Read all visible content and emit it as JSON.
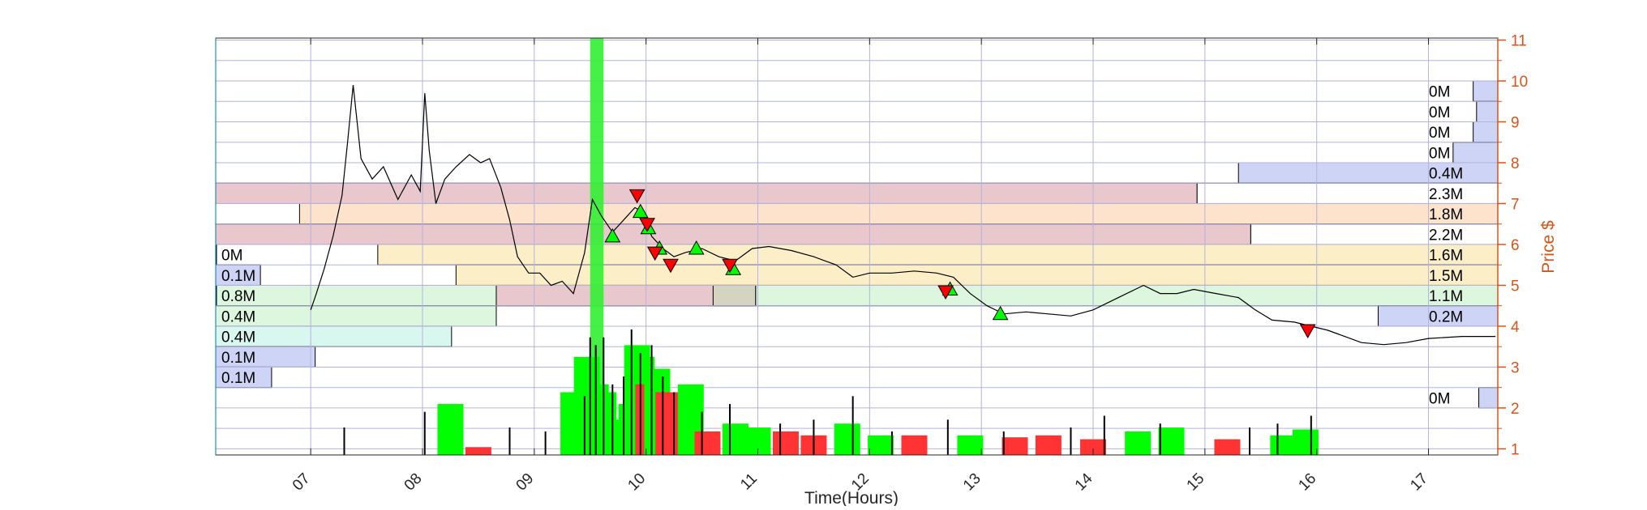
{
  "chart_data": {
    "type": "line",
    "title": "",
    "xlabel": "Time(Hours)",
    "ylabel": "Price $",
    "xlim": [
      6.15,
      17.62
    ],
    "ylim": [
      0.85,
      11.05
    ],
    "x_ticks": [
      "07",
      "08",
      "09",
      "10",
      "11",
      "12",
      "13",
      "14",
      "15",
      "16",
      "17"
    ],
    "y_ticks": [
      1,
      2,
      3,
      4,
      5,
      6,
      7,
      8,
      9,
      10,
      11
    ],
    "grid": true,
    "colors": {
      "axis_right": "#d95319",
      "axis_left": "#0072bd",
      "grid": "#b3b3dd",
      "price": "#000000",
      "buy_marker": "#00ff00",
      "sell_marker": "#ff0000",
      "vol_up": "#00ff00",
      "vol_down": "#ff3333",
      "vp_blue": "#cdd4f5",
      "vp_red": "#e8c8cc",
      "vp_orange": "#fde2cc",
      "vp_yellow": "#fcefc8",
      "vp_green": "#ddf7df",
      "vp_cyan": "#d8f7ef"
    },
    "price_series": [
      [
        7.0,
        4.4
      ],
      [
        7.05,
        4.8
      ],
      [
        7.12,
        5.4
      ],
      [
        7.2,
        6.2
      ],
      [
        7.28,
        7.2
      ],
      [
        7.33,
        8.5
      ],
      [
        7.38,
        9.9
      ],
      [
        7.45,
        8.1
      ],
      [
        7.55,
        7.6
      ],
      [
        7.65,
        7.9
      ],
      [
        7.78,
        7.1
      ],
      [
        7.9,
        7.7
      ],
      [
        7.98,
        7.3
      ],
      [
        8.02,
        9.7
      ],
      [
        8.06,
        8.3
      ],
      [
        8.12,
        7.0
      ],
      [
        8.2,
        7.6
      ],
      [
        8.3,
        7.9
      ],
      [
        8.42,
        8.2
      ],
      [
        8.52,
        8.0
      ],
      [
        8.6,
        8.1
      ],
      [
        8.7,
        7.4
      ],
      [
        8.78,
        6.6
      ],
      [
        8.85,
        5.7
      ],
      [
        8.95,
        5.3
      ],
      [
        9.05,
        5.3
      ],
      [
        9.15,
        5.0
      ],
      [
        9.25,
        5.1
      ],
      [
        9.35,
        4.8
      ],
      [
        9.45,
        5.8
      ],
      [
        9.52,
        7.1
      ],
      [
        9.6,
        6.7
      ],
      [
        9.7,
        6.3
      ],
      [
        9.8,
        6.6
      ],
      [
        9.9,
        6.9
      ],
      [
        9.97,
        6.8
      ],
      [
        10.05,
        6.2
      ],
      [
        10.15,
        5.9
      ],
      [
        10.25,
        5.7
      ],
      [
        10.35,
        5.8
      ],
      [
        10.5,
        5.9
      ],
      [
        10.65,
        5.7
      ],
      [
        10.8,
        5.6
      ],
      [
        10.95,
        5.9
      ],
      [
        11.1,
        5.95
      ],
      [
        11.3,
        5.85
      ],
      [
        11.5,
        5.7
      ],
      [
        11.7,
        5.5
      ],
      [
        11.85,
        5.2
      ],
      [
        12.0,
        5.3
      ],
      [
        12.2,
        5.3
      ],
      [
        12.4,
        5.35
      ],
      [
        12.6,
        5.3
      ],
      [
        12.75,
        5.2
      ],
      [
        12.9,
        4.8
      ],
      [
        13.05,
        4.5
      ],
      [
        13.2,
        4.3
      ],
      [
        13.4,
        4.35
      ],
      [
        13.6,
        4.3
      ],
      [
        13.8,
        4.25
      ],
      [
        14.0,
        4.4
      ],
      [
        14.15,
        4.6
      ],
      [
        14.3,
        4.8
      ],
      [
        14.45,
        5.0
      ],
      [
        14.6,
        4.8
      ],
      [
        14.75,
        4.8
      ],
      [
        14.9,
        4.9
      ],
      [
        15.1,
        4.8
      ],
      [
        15.3,
        4.7
      ],
      [
        15.45,
        4.4
      ],
      [
        15.6,
        4.15
      ],
      [
        15.8,
        4.1
      ],
      [
        15.95,
        4.0
      ],
      [
        16.1,
        3.9
      ],
      [
        16.25,
        3.75
      ],
      [
        16.4,
        3.6
      ],
      [
        16.6,
        3.55
      ],
      [
        16.8,
        3.6
      ],
      [
        17.0,
        3.7
      ],
      [
        17.3,
        3.75
      ],
      [
        17.6,
        3.75
      ]
    ],
    "buy_signals": [
      [
        9.7,
        6.2
      ],
      [
        9.95,
        6.8
      ],
      [
        10.02,
        6.4
      ],
      [
        10.12,
        5.9
      ],
      [
        10.45,
        5.9
      ],
      [
        10.78,
        5.4
      ],
      [
        12.72,
        4.9
      ],
      [
        13.17,
        4.3
      ]
    ],
    "sell_signals": [
      [
        9.92,
        7.2
      ],
      [
        10.01,
        6.5
      ],
      [
        10.08,
        5.8
      ],
      [
        10.22,
        5.5
      ],
      [
        10.75,
        5.5
      ],
      [
        12.68,
        4.85
      ],
      [
        15.92,
        3.9
      ]
    ],
    "volume_profile": [
      {
        "label": "0M",
        "price_low": 9.5,
        "price_high": 10.0,
        "x_start": 17.4,
        "color": "#cdd4f5"
      },
      {
        "label": "0M",
        "price_low": 9.0,
        "price_high": 9.5,
        "x_start": 17.43,
        "color": "#cdd4f5"
      },
      {
        "label": "0M",
        "price_low": 8.5,
        "price_high": 9.0,
        "x_start": 17.4,
        "color": "#cdd4f5"
      },
      {
        "label": "0M",
        "price_low": 8.0,
        "price_high": 8.5,
        "x_start": 17.22,
        "color": "#cdd4f5"
      },
      {
        "label": "0.4M",
        "price_low": 7.5,
        "price_high": 8.0,
        "x_start": 15.3,
        "color": "#cdd4f5"
      },
      {
        "label": "2.3M",
        "price_low": 7.0,
        "price_high": 7.5,
        "x_start": 6.15,
        "x_end": 14.93,
        "color": "#e8c8cc"
      },
      {
        "label": "1.8M",
        "price_low": 6.5,
        "price_high": 7.0,
        "x_start": 6.9,
        "color": "#fde2cc"
      },
      {
        "label": "2.2M",
        "price_low": 6.0,
        "price_high": 6.5,
        "x_start": 6.15,
        "x_end": 15.41,
        "color": "#e8c8cc"
      },
      {
        "label": "1.6M",
        "price_low": 5.5,
        "price_high": 6.0,
        "x_start": 7.6,
        "color": "#fcefc8"
      },
      {
        "label": "1.5M",
        "price_low": 5.0,
        "price_high": 5.5,
        "x_start": 8.3,
        "color": "#fcefc8"
      },
      {
        "label": "1.1M",
        "price_low": 4.5,
        "price_high": 5.0,
        "x_start": 6.15,
        "color": "#ddf7df",
        "overlay_end": 10.98
      },
      {
        "label": "0.2M",
        "price_low": 4.0,
        "price_high": 4.5,
        "x_start": 16.55,
        "color": "#cdd4f5"
      },
      {
        "label": "0M",
        "price_low": 2.0,
        "price_high": 2.5,
        "x_start": 17.45,
        "color": "#cdd4f5"
      }
    ],
    "volume_profile_left": [
      {
        "label": "0M",
        "price_low": 5.5,
        "price_high": 6.0,
        "x_end": 6.15,
        "color": "#ffffff"
      },
      {
        "label": "0.1M",
        "price_low": 5.0,
        "price_high": 5.5,
        "x_end": 6.55,
        "color": "#cdd4f5"
      },
      {
        "label": "0.8M",
        "price_low": 4.5,
        "price_high": 5.0,
        "x_end": 6.15,
        "color": "#e8c8cc"
      },
      {
        "label": "0.4M",
        "price_low": 4.0,
        "price_high": 4.5,
        "x_end": 8.66,
        "color": "#ddf7df"
      },
      {
        "label": "0.4M",
        "price_low": 3.5,
        "price_high": 4.0,
        "x_end": 8.26,
        "color": "#d8f7ef"
      },
      {
        "label": "0.1M",
        "price_low": 3.0,
        "price_high": 3.5,
        "x_end": 7.04,
        "color": "#cdd4f5"
      },
      {
        "label": "0.1M",
        "price_low": 2.5,
        "price_high": 3.0,
        "x_end": 6.65,
        "color": "#cdd4f5"
      }
    ],
    "highlight_band": {
      "x_start": 9.5,
      "x_end": 9.62,
      "color": "#33ee33"
    },
    "volume_bars": [
      [
        8.25,
        1.3,
        "up"
      ],
      [
        8.5,
        0.2,
        "down"
      ],
      [
        9.35,
        1.6,
        "up"
      ],
      [
        9.47,
        2.5,
        "up"
      ],
      [
        9.55,
        1.8,
        "up"
      ],
      [
        9.62,
        1.6,
        "up"
      ],
      [
        9.75,
        0.9,
        "up"
      ],
      [
        9.87,
        1.3,
        "up"
      ],
      [
        9.92,
        2.8,
        "up"
      ],
      [
        9.96,
        2.5,
        "up"
      ],
      [
        10.02,
        1.8,
        "down"
      ],
      [
        10.1,
        2.2,
        "up"
      ],
      [
        10.2,
        1.6,
        "down"
      ],
      [
        10.4,
        1.8,
        "up"
      ],
      [
        10.55,
        0.6,
        "down"
      ],
      [
        10.8,
        0.8,
        "up"
      ],
      [
        11.0,
        0.7,
        "up"
      ],
      [
        11.25,
        0.6,
        "down"
      ],
      [
        11.5,
        0.5,
        "down"
      ],
      [
        11.8,
        0.8,
        "up"
      ],
      [
        12.1,
        0.5,
        "up"
      ],
      [
        12.4,
        0.5,
        "down"
      ],
      [
        12.9,
        0.5,
        "up"
      ],
      [
        13.3,
        0.45,
        "down"
      ],
      [
        13.6,
        0.5,
        "down"
      ],
      [
        14.0,
        0.4,
        "down"
      ],
      [
        14.4,
        0.6,
        "up"
      ],
      [
        14.7,
        0.7,
        "up"
      ],
      [
        15.2,
        0.4,
        "down"
      ],
      [
        15.7,
        0.5,
        "up"
      ],
      [
        15.9,
        0.65,
        "up"
      ]
    ],
    "volume_ticks": [
      [
        7.3,
        0.7
      ],
      [
        8.02,
        1.1
      ],
      [
        8.78,
        0.7
      ],
      [
        9.1,
        0.6
      ],
      [
        9.45,
        1.5
      ],
      [
        9.5,
        3.0
      ],
      [
        9.55,
        2.8
      ],
      [
        9.62,
        3.0
      ],
      [
        9.7,
        1.8
      ],
      [
        9.8,
        2.0
      ],
      [
        9.87,
        3.2
      ],
      [
        9.95,
        2.6
      ],
      [
        10.05,
        2.8
      ],
      [
        10.15,
        2.0
      ],
      [
        10.25,
        1.6
      ],
      [
        10.5,
        1.1
      ],
      [
        10.75,
        1.3
      ],
      [
        11.2,
        0.8
      ],
      [
        11.5,
        0.9
      ],
      [
        11.85,
        1.5
      ],
      [
        12.2,
        0.6
      ],
      [
        12.7,
        0.9
      ],
      [
        13.2,
        0.6
      ],
      [
        13.8,
        0.7
      ],
      [
        14.1,
        1.0
      ],
      [
        14.6,
        0.8
      ],
      [
        15.4,
        0.7
      ],
      [
        15.65,
        0.8
      ],
      [
        15.95,
        1.0
      ]
    ]
  }
}
